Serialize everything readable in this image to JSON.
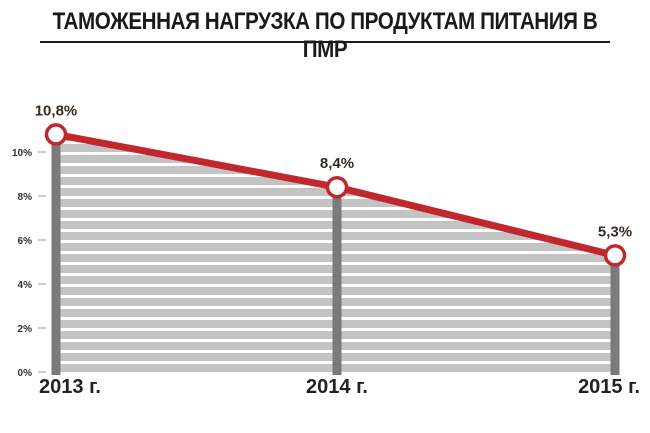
{
  "chart_data": {
    "type": "area",
    "title": "ТАМОЖЕННАЯ НАГРУЗКА ПО ПРОДУКТАМ ПИТАНИЯ В ПМР",
    "categories": [
      "2013 г.",
      "2014 г.",
      "2015 г."
    ],
    "series": [
      {
        "values": [
          10.8,
          8.4,
          5.3
        ]
      }
    ],
    "data_labels": [
      "10,8%",
      "8,4%",
      "5,3%"
    ],
    "y_ticks": [
      0,
      2,
      4,
      6,
      8,
      10
    ],
    "y_tick_labels": [
      "0%",
      "2%",
      "4%",
      "6%",
      "8%",
      "10%"
    ],
    "ylim": [
      0,
      11
    ],
    "xlabel": "",
    "ylabel": "",
    "grid": false,
    "colors": {
      "line": "#c1272d",
      "marker_fill": "#ffffff",
      "stripe": "#c3c3c3",
      "stripe_gap": "#ffffff",
      "column": "#7a7a7a"
    }
  }
}
